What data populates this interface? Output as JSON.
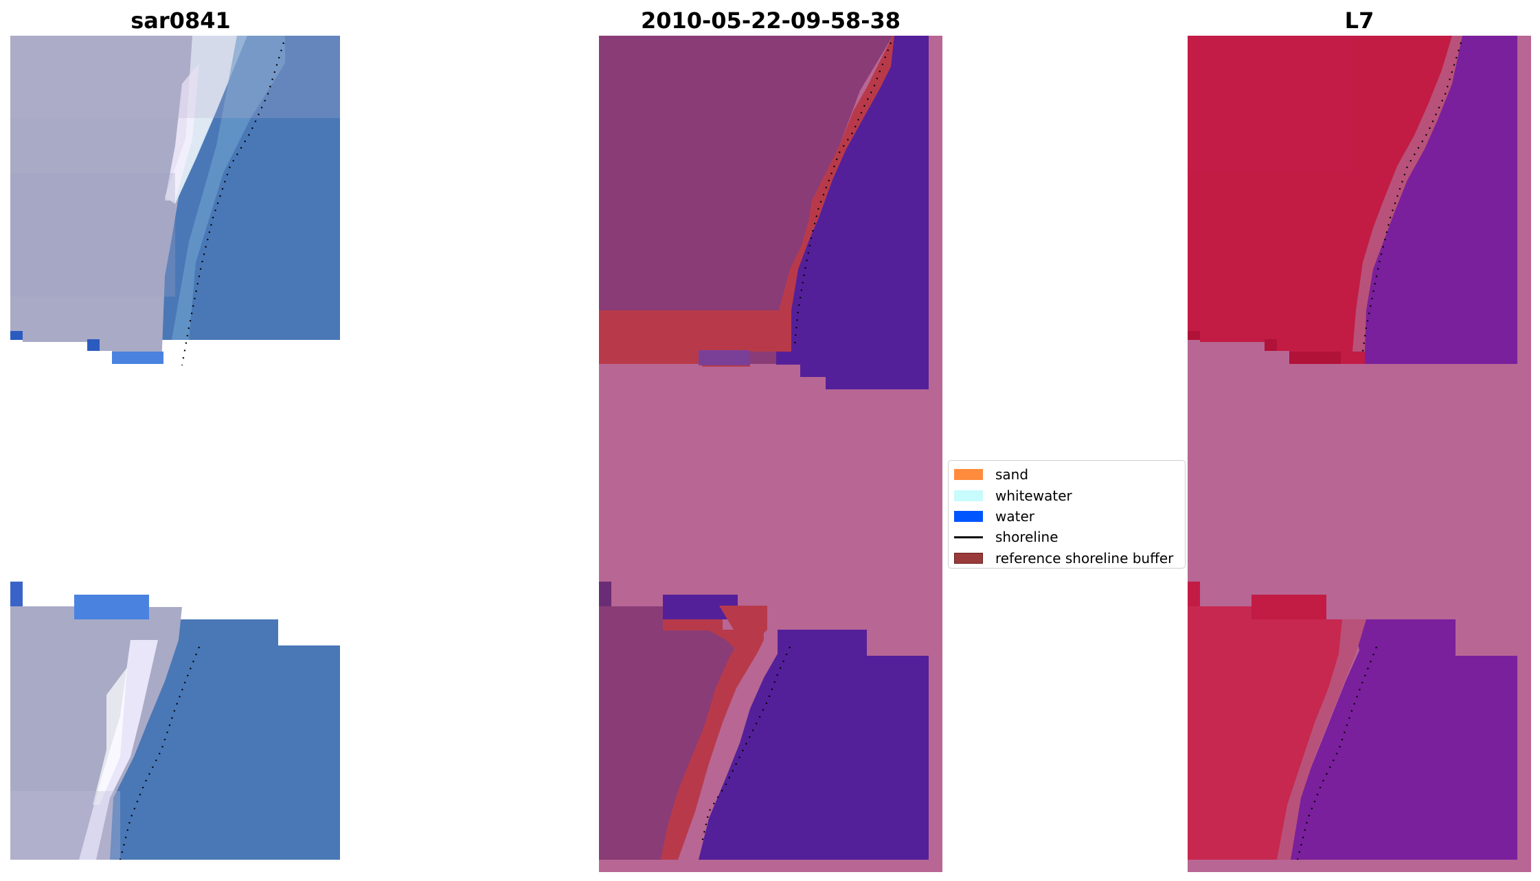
{
  "panels": [
    {
      "title": "sar0841"
    },
    {
      "title": "2010-05-22-09-58-38"
    },
    {
      "title": "L7"
    }
  ],
  "legend": {
    "items": [
      {
        "label": "sand",
        "color": "#ff8c3c",
        "kind": "patch"
      },
      {
        "label": "whitewater",
        "color": "#c8fbfb",
        "kind": "patch"
      },
      {
        "label": "water",
        "color": "#0055ff",
        "kind": "patch"
      },
      {
        "label": "shoreline",
        "color": "#000000",
        "kind": "line"
      },
      {
        "label": "reference shoreline buffer",
        "color": "#9a3a3a",
        "kind": "patch"
      }
    ]
  },
  "colors": {
    "rgb_land": "#a9aac6",
    "rgb_water": "#4677b5",
    "rgb_whitewater": "#e8f4fa",
    "classification_land": "#8a3c76",
    "classification_buffer": "#b83a4a",
    "classification_water": "#54209a",
    "classification_nodata": "#b86694",
    "false_color_land": "#c21c44",
    "false_color_water": "#7a209c",
    "false_color_nodata": "#b86694"
  }
}
